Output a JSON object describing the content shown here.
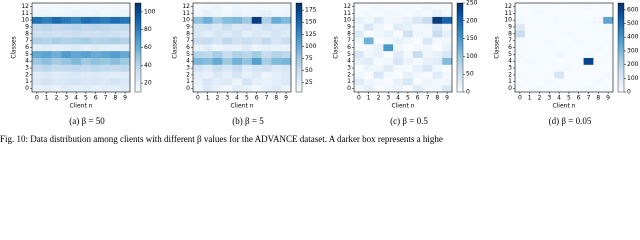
{
  "figure_caption": "Fig. 10: Data distribution among clients with different β values for the ADVANCE dataset. A darker box represents a highe",
  "chart_data": [
    {
      "type": "heatmap",
      "caption": "(a) β = 50",
      "xlabel": "Client n",
      "ylabel": "Classes",
      "x_categories": [
        0,
        1,
        2,
        3,
        4,
        5,
        6,
        7,
        8,
        9
      ],
      "y_categories": [
        0,
        1,
        2,
        3,
        4,
        5,
        6,
        7,
        8,
        9,
        10,
        11,
        12
      ],
      "colormap": [
        "#f7fbff",
        "#deebf7",
        "#c6dbef",
        "#9ecae1",
        "#6baed6",
        "#4292c6",
        "#2171b5",
        "#08519c",
        "#08306b"
      ],
      "clim": [
        10,
        110
      ],
      "cticks": [
        20,
        40,
        60,
        80,
        100
      ],
      "values": [
        [
          18,
          20,
          17,
          22,
          19,
          21,
          18,
          20,
          19,
          22
        ],
        [
          25,
          28,
          24,
          26,
          27,
          25,
          26,
          24,
          28,
          25
        ],
        [
          22,
          24,
          21,
          23,
          25,
          22,
          24,
          23,
          21,
          22
        ],
        [
          35,
          38,
          34,
          36,
          37,
          35,
          38,
          36,
          34,
          37
        ],
        [
          48,
          52,
          46,
          50,
          55,
          47,
          51,
          49,
          53,
          48
        ],
        [
          62,
          65,
          60,
          68,
          63,
          66,
          61,
          64,
          67,
          62
        ],
        [
          20,
          22,
          19,
          21,
          23,
          20,
          22,
          21,
          19,
          20
        ],
        [
          42,
          40,
          44,
          41,
          43,
          45,
          40,
          42,
          44,
          41
        ],
        [
          30,
          32,
          29,
          31,
          33,
          30,
          31,
          32,
          30,
          29
        ],
        [
          36,
          38,
          35,
          37,
          39,
          36,
          38,
          37,
          35,
          36
        ],
        [
          85,
          80,
          88,
          82,
          78,
          86,
          84,
          81,
          87,
          83
        ],
        [
          15,
          16,
          14,
          15,
          17,
          15,
          16,
          14,
          15,
          16
        ],
        [
          12,
          13,
          12,
          14,
          12,
          13,
          12,
          13,
          14,
          12
        ]
      ]
    },
    {
      "type": "heatmap",
      "caption": "(b) β = 5",
      "xlabel": "Client n",
      "ylabel": "Classes",
      "x_categories": [
        0,
        1,
        2,
        3,
        4,
        5,
        6,
        7,
        8,
        9
      ],
      "y_categories": [
        0,
        1,
        2,
        3,
        4,
        5,
        6,
        7,
        8,
        9,
        10,
        11,
        12
      ],
      "colormap": [
        "#f7fbff",
        "#deebf7",
        "#c6dbef",
        "#9ecae1",
        "#6baed6",
        "#4292c6",
        "#2171b5",
        "#08519c",
        "#08306b"
      ],
      "clim": [
        5,
        190
      ],
      "cticks": [
        25,
        50,
        75,
        100,
        125,
        150,
        175
      ],
      "values": [
        [
          15,
          30,
          20,
          10,
          25,
          18,
          12,
          22,
          28,
          16
        ],
        [
          20,
          35,
          25,
          30,
          15,
          40,
          22,
          18,
          25,
          30
        ],
        [
          25,
          18,
          30,
          22,
          35,
          20,
          28,
          15,
          24,
          30
        ],
        [
          40,
          30,
          45,
          35,
          50,
          28,
          38,
          42,
          30,
          36
        ],
        [
          90,
          85,
          100,
          75,
          95,
          80,
          110,
          70,
          88,
          92
        ],
        [
          60,
          55,
          70,
          50,
          65,
          58,
          72,
          48,
          62,
          55
        ],
        [
          18,
          25,
          15,
          22,
          20,
          28,
          16,
          24,
          20,
          18
        ],
        [
          45,
          50,
          38,
          55,
          42,
          48,
          40,
          52,
          36,
          46
        ],
        [
          30,
          25,
          35,
          28,
          40,
          22,
          32,
          26,
          38,
          30
        ],
        [
          35,
          40,
          30,
          45,
          32,
          38,
          28,
          42,
          34,
          36
        ],
        [
          80,
          95,
          70,
          85,
          90,
          75,
          180,
          65,
          100,
          88
        ],
        [
          12,
          20,
          15,
          10,
          18,
          14,
          16,
          22,
          12,
          15
        ],
        [
          10,
          12,
          15,
          8,
          14,
          10,
          12,
          9,
          11,
          13
        ]
      ]
    },
    {
      "type": "heatmap",
      "caption": "(c) β = 0.5",
      "xlabel": "Client n",
      "ylabel": "Classes",
      "x_categories": [
        0,
        1,
        2,
        3,
        4,
        5,
        6,
        7,
        8,
        9
      ],
      "y_categories": [
        0,
        1,
        2,
        3,
        4,
        5,
        6,
        7,
        8,
        9,
        10,
        11,
        12
      ],
      "colormap": [
        "#f7fbff",
        "#deebf7",
        "#c6dbef",
        "#9ecae1",
        "#6baed6",
        "#4292c6",
        "#2171b5",
        "#08519c",
        "#08306b"
      ],
      "clim": [
        0,
        250
      ],
      "cticks": [
        0,
        50,
        100,
        150,
        200,
        250
      ],
      "values": [
        [
          5,
          20,
          0,
          10,
          15,
          0,
          30,
          5,
          10,
          40
        ],
        [
          30,
          10,
          5,
          0,
          20,
          40,
          0,
          15,
          5,
          10
        ],
        [
          10,
          0,
          40,
          5,
          0,
          20,
          10,
          0,
          30,
          5
        ],
        [
          0,
          15,
          10,
          30,
          5,
          0,
          20,
          40,
          10,
          0
        ],
        [
          20,
          30,
          0,
          10,
          40,
          15,
          5,
          20,
          30,
          110
        ],
        [
          40,
          10,
          20,
          0,
          30,
          5,
          60,
          10,
          20,
          40
        ],
        [
          0,
          5,
          20,
          150,
          10,
          0,
          5,
          10,
          0,
          20
        ],
        [
          10,
          120,
          0,
          5,
          20,
          10,
          0,
          40,
          5,
          10
        ],
        [
          30,
          0,
          10,
          20,
          0,
          50,
          10,
          5,
          60,
          20
        ],
        [
          5,
          40,
          10,
          0,
          30,
          20,
          5,
          10,
          40,
          10
        ],
        [
          20,
          10,
          30,
          5,
          10,
          20,
          40,
          60,
          240,
          200
        ],
        [
          0,
          5,
          0,
          10,
          5,
          0,
          10,
          5,
          20,
          5
        ],
        [
          0,
          0,
          5,
          0,
          0,
          5,
          0,
          10,
          5,
          0
        ]
      ]
    },
    {
      "type": "heatmap",
      "caption": "(d) β = 0.05",
      "xlabel": "Client n",
      "ylabel": "Classes",
      "x_categories": [
        0,
        1,
        2,
        3,
        4,
        5,
        6,
        7,
        8,
        9
      ],
      "y_categories": [
        0,
        1,
        2,
        3,
        4,
        5,
        6,
        7,
        8,
        9,
        10,
        11,
        12
      ],
      "colormap": [
        "#f7fbff",
        "#deebf7",
        "#c6dbef",
        "#9ecae1",
        "#6baed6",
        "#4292c6",
        "#2171b5",
        "#08519c",
        "#08306b"
      ],
      "clim": [
        0,
        650
      ],
      "cticks": [
        0,
        100,
        200,
        300,
        400,
        500,
        600
      ],
      "values": [
        [
          5,
          0,
          10,
          0,
          5,
          0,
          0,
          10,
          0,
          5
        ],
        [
          0,
          5,
          0,
          10,
          0,
          0,
          5,
          0,
          10,
          0
        ],
        [
          10,
          0,
          0,
          5,
          110,
          0,
          0,
          5,
          0,
          10
        ],
        [
          0,
          0,
          5,
          0,
          0,
          10,
          0,
          0,
          5,
          0
        ],
        [
          0,
          10,
          0,
          5,
          0,
          0,
          5,
          600,
          0,
          0
        ],
        [
          10,
          0,
          5,
          0,
          20,
          0,
          0,
          10,
          0,
          5
        ],
        [
          0,
          5,
          0,
          0,
          0,
          5,
          0,
          0,
          10,
          0
        ],
        [
          5,
          0,
          0,
          10,
          0,
          0,
          10,
          0,
          0,
          5
        ],
        [
          150,
          0,
          5,
          0,
          0,
          10,
          0,
          0,
          5,
          0
        ],
        [
          80,
          0,
          0,
          5,
          0,
          0,
          0,
          5,
          0,
          10
        ],
        [
          10,
          5,
          0,
          0,
          10,
          0,
          5,
          0,
          20,
          350
        ],
        [
          0,
          0,
          10,
          0,
          0,
          5,
          0,
          0,
          0,
          0
        ],
        [
          5,
          0,
          0,
          0,
          5,
          0,
          0,
          10,
          0,
          0
        ]
      ]
    }
  ]
}
